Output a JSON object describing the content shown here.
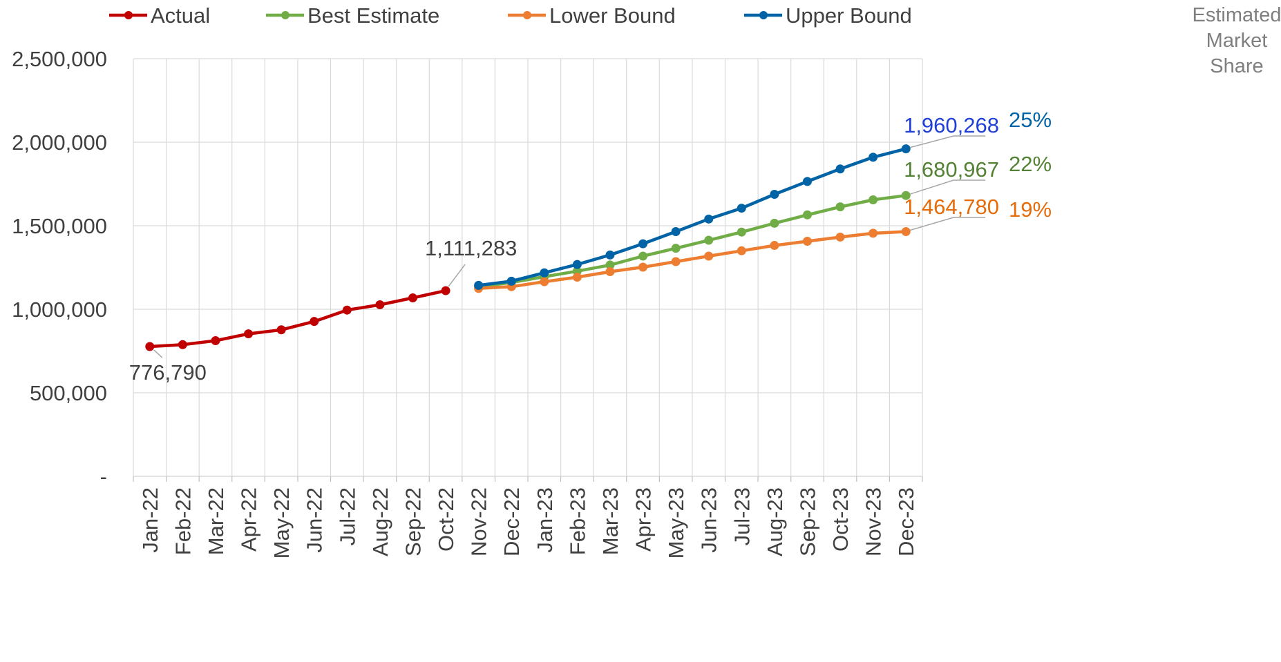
{
  "chart_data": {
    "type": "line",
    "categories": [
      "Jan-22",
      "Feb-22",
      "Mar-22",
      "Apr-22",
      "May-22",
      "Jun-22",
      "Jul-22",
      "Aug-22",
      "Sep-22",
      "Oct-22",
      "Nov-22",
      "Dec-22",
      "Jan-23",
      "Feb-23",
      "Mar-23",
      "Apr-23",
      "May-23",
      "Jun-23",
      "Jul-23",
      "Aug-23",
      "Sep-23",
      "Oct-23",
      "Nov-23",
      "Dec-23"
    ],
    "ylim": [
      0,
      2500000
    ],
    "yticks": [
      0,
      500000,
      1000000,
      1500000,
      2000000,
      2500000
    ],
    "ytick_labels": [
      "-",
      "500,000",
      "1,000,000",
      "1,500,000",
      "2,000,000",
      "2,500,000"
    ],
    "grid": true,
    "legend_position": "top",
    "series": [
      {
        "name": "Actual",
        "color": "#c00000",
        "values": [
          776790,
          788000,
          812000,
          853000,
          877000,
          927000,
          995000,
          1027000,
          1068000,
          1111283,
          null,
          null,
          null,
          null,
          null,
          null,
          null,
          null,
          null,
          null,
          null,
          null,
          null,
          null
        ]
      },
      {
        "name": "Best Estimate",
        "color": "#70ad47",
        "values": [
          null,
          null,
          null,
          null,
          null,
          null,
          null,
          null,
          null,
          null,
          1135000,
          1160000,
          1195000,
          1228000,
          1265000,
          1318000,
          1365000,
          1413000,
          1462000,
          1515000,
          1565000,
          1613000,
          1655000,
          1680967
        ]
      },
      {
        "name": "Lower Bound",
        "color": "#ed7d31",
        "values": [
          null,
          null,
          null,
          null,
          null,
          null,
          null,
          null,
          null,
          null,
          1125000,
          1135000,
          1165000,
          1192000,
          1225000,
          1252000,
          1285000,
          1318000,
          1350000,
          1382000,
          1407000,
          1432000,
          1455000,
          1464780
        ]
      },
      {
        "name": "Upper Bound",
        "color": "#0063a6",
        "values": [
          null,
          null,
          null,
          null,
          null,
          null,
          null,
          null,
          null,
          null,
          1143000,
          1168000,
          1218000,
          1268000,
          1325000,
          1392000,
          1465000,
          1540000,
          1605000,
          1688000,
          1765000,
          1840000,
          1910000,
          1960268
        ]
      }
    ],
    "annotations": [
      {
        "series": "Actual",
        "index": 0,
        "text": "776,790",
        "color": "#404040"
      },
      {
        "series": "Actual",
        "index": 9,
        "text": "1,111,283",
        "color": "#404040"
      },
      {
        "series": "Upper Bound",
        "index": 23,
        "text": "1,960,268",
        "color": "#1f3fd6"
      },
      {
        "series": "Best Estimate",
        "index": 23,
        "text": "1,680,967",
        "color": "#548235"
      },
      {
        "series": "Lower Bound",
        "index": 23,
        "text": "1,464,780",
        "color": "#e46c0a"
      }
    ],
    "market_share": {
      "title_lines": [
        "Estimated",
        "Market",
        "Share"
      ],
      "items": [
        {
          "series": "Upper Bound",
          "text": "25%",
          "color": "#0063a6"
        },
        {
          "series": "Best Estimate",
          "text": "22%",
          "color": "#548235"
        },
        {
          "series": "Lower Bound",
          "text": "19%",
          "color": "#e46c0a"
        }
      ]
    }
  }
}
